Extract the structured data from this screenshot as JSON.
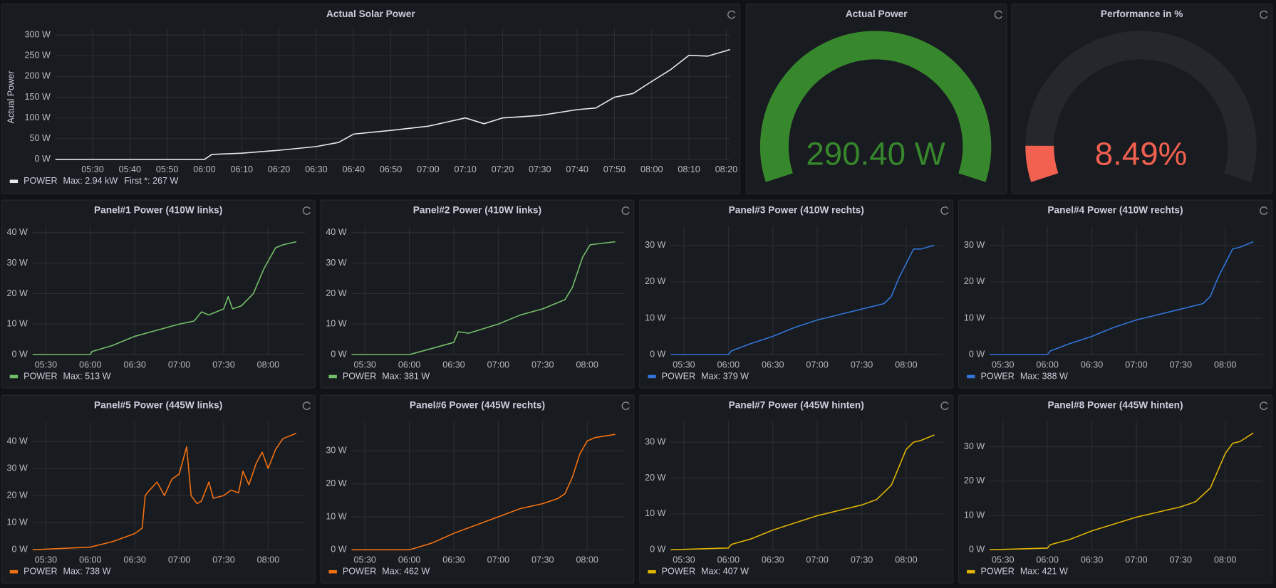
{
  "chart_data": [
    {
      "type": "line",
      "title": "Actual Solar Power",
      "ylabel": "Actual Power",
      "x": [
        "05:20",
        "06:00",
        "06:02",
        "06:10",
        "06:20",
        "06:30",
        "06:36",
        "06:40",
        "06:50",
        "07:00",
        "07:05",
        "07:10",
        "07:15",
        "07:20",
        "07:30",
        "07:40",
        "07:45",
        "07:50",
        "07:55",
        "08:00",
        "08:05",
        "08:10",
        "08:15",
        "08:20",
        "08:21"
      ],
      "series": [
        {
          "name": "POWER",
          "color": "#e8e8e8",
          "values": [
            0,
            0,
            12,
            15,
            22,
            31,
            41,
            61,
            70,
            80,
            90,
            100,
            86,
            100,
            106,
            120,
            124,
            150,
            159,
            188,
            216,
            251,
            249,
            262,
            265
          ]
        }
      ],
      "legend_stats": [
        "Max: 2.94 kW",
        "First *: 267 W"
      ],
      "xlim": [
        "05:20",
        "08:21"
      ],
      "xticks": [
        "05:30",
        "05:40",
        "05:50",
        "06:00",
        "06:10",
        "06:20",
        "06:30",
        "06:40",
        "06:50",
        "07:00",
        "07:10",
        "07:20",
        "07:30",
        "07:40",
        "07:50",
        "08:00",
        "08:10",
        "08:20"
      ],
      "ylim": [
        0,
        300
      ],
      "yticks": [
        {
          "value": 0,
          "label": "0 W"
        },
        {
          "value": 50,
          "label": "50 W"
        },
        {
          "value": 100,
          "label": "100 W"
        },
        {
          "value": 150,
          "label": "150 W"
        },
        {
          "value": 200,
          "label": "200 W"
        },
        {
          "value": 250,
          "label": "250 W"
        },
        {
          "value": 300,
          "label": "300 W"
        }
      ]
    },
    {
      "type": "gauge",
      "title": "Actual Power",
      "value": 290.4,
      "value_label": "290.40 W",
      "lim": [
        0,
        290.4
      ],
      "color": "#37872d"
    },
    {
      "type": "gauge",
      "title": "Performance in %",
      "value": 8.49,
      "value_label": "8.49%",
      "lim": [
        0,
        100
      ],
      "color": "#f2604f"
    },
    {
      "type": "line",
      "title": "Panel#1 Power (410W links)",
      "x": [
        "05:21",
        "06:00",
        "06:01",
        "06:15",
        "06:30",
        "06:45",
        "07:00",
        "07:10",
        "07:15",
        "07:20",
        "07:25",
        "07:30",
        "07:33",
        "07:36",
        "07:42",
        "07:50",
        "07:57",
        "08:05",
        "08:10",
        "08:19"
      ],
      "series": [
        {
          "name": "POWER",
          "color": "#73bf69",
          "values": [
            0,
            0,
            1,
            3,
            6,
            8,
            10,
            11,
            14,
            13,
            14,
            15,
            19,
            15,
            16,
            20,
            28,
            35,
            36,
            37
          ]
        }
      ],
      "legend_stats": [
        "Max: 513 W"
      ],
      "xlim": [
        "05:21",
        "08:25"
      ],
      "xticks": [
        "05:30",
        "06:00",
        "06:30",
        "07:00",
        "07:30",
        "08:00"
      ],
      "ylim": [
        0,
        40
      ],
      "yticks": [
        {
          "value": 0,
          "label": "0 W"
        },
        {
          "value": 10,
          "label": "10 W"
        },
        {
          "value": 20,
          "label": "20 W"
        },
        {
          "value": 30,
          "label": "30 W"
        },
        {
          "value": 40,
          "label": "40 W"
        }
      ]
    },
    {
      "type": "line",
      "title": "Panel#2 Power (410W links)",
      "x": [
        "05:21",
        "06:00",
        "06:15",
        "06:30",
        "06:33",
        "06:40",
        "07:00",
        "07:15",
        "07:30",
        "07:40",
        "07:45",
        "07:50",
        "07:57",
        "08:02",
        "08:10",
        "08:19"
      ],
      "series": [
        {
          "name": "POWER",
          "color": "#73bf69",
          "values": [
            0,
            0,
            2,
            4,
            7.5,
            7,
            10,
            13,
            15,
            17,
            18,
            22,
            32,
            36,
            36.5,
            37
          ]
        }
      ],
      "legend_stats": [
        "Max: 381 W"
      ],
      "xlim": [
        "05:21",
        "08:25"
      ],
      "xticks": [
        "05:30",
        "06:00",
        "06:30",
        "07:00",
        "07:30",
        "08:00"
      ],
      "ylim": [
        0,
        40
      ],
      "yticks": [
        {
          "value": 0,
          "label": "0 W"
        },
        {
          "value": 10,
          "label": "10 W"
        },
        {
          "value": 20,
          "label": "20 W"
        },
        {
          "value": 30,
          "label": "30 W"
        },
        {
          "value": 40,
          "label": "40 W"
        }
      ]
    },
    {
      "type": "line",
      "title": "Panel#3 Power (410W rechts)",
      "x": [
        "05:21",
        "06:00",
        "06:02",
        "06:15",
        "06:30",
        "06:45",
        "07:00",
        "07:15",
        "07:30",
        "07:45",
        "07:50",
        "07:55",
        "08:00",
        "08:05",
        "08:10",
        "08:19"
      ],
      "series": [
        {
          "name": "POWER",
          "color": "#3274d9",
          "values": [
            0,
            0,
            1,
            3,
            5,
            7.5,
            9.5,
            11,
            12.5,
            14,
            16,
            21,
            25,
            29,
            29,
            30
          ]
        }
      ],
      "legend_stats": [
        "Max: 379 W"
      ],
      "xlim": [
        "05:21",
        "08:25"
      ],
      "xticks": [
        "05:30",
        "06:00",
        "06:30",
        "07:00",
        "07:30",
        "08:00"
      ],
      "ylim": [
        0,
        33.5
      ],
      "yticks": [
        {
          "value": 0,
          "label": "0 W"
        },
        {
          "value": 10,
          "label": "10 W"
        },
        {
          "value": 20,
          "label": "20 W"
        },
        {
          "value": 30,
          "label": "30 W"
        }
      ]
    },
    {
      "type": "line",
      "title": "Panel#4 Power (410W rechts)",
      "x": [
        "05:21",
        "06:00",
        "06:02",
        "06:15",
        "06:30",
        "06:45",
        "07:00",
        "07:15",
        "07:30",
        "07:45",
        "07:50",
        "07:55",
        "08:00",
        "08:05",
        "08:10",
        "08:19"
      ],
      "series": [
        {
          "name": "POWER",
          "color": "#3274d9",
          "values": [
            0,
            0,
            1,
            3,
            5,
            7.5,
            9.5,
            11,
            12.5,
            14,
            16,
            21,
            25,
            29,
            29.5,
            31
          ]
        }
      ],
      "legend_stats": [
        "Max: 388 W"
      ],
      "xlim": [
        "05:21",
        "08:25"
      ],
      "xticks": [
        "05:30",
        "06:00",
        "06:30",
        "07:00",
        "07:30",
        "08:00"
      ],
      "ylim": [
        0,
        33.5
      ],
      "yticks": [
        {
          "value": 0,
          "label": "0 W"
        },
        {
          "value": 10,
          "label": "10 W"
        },
        {
          "value": 20,
          "label": "20 W"
        },
        {
          "value": 30,
          "label": "30 W"
        }
      ]
    },
    {
      "type": "line",
      "title": "Panel#5 Power (445W links)",
      "x": [
        "05:21",
        "06:00",
        "06:15",
        "06:30",
        "06:35",
        "06:37",
        "06:40",
        "06:45",
        "06:50",
        "06:55",
        "07:00",
        "07:05",
        "07:08",
        "07:12",
        "07:15",
        "07:20",
        "07:23",
        "07:30",
        "07:35",
        "07:40",
        "07:43",
        "07:47",
        "07:52",
        "07:56",
        "08:00",
        "08:05",
        "08:10",
        "08:19"
      ],
      "series": [
        {
          "name": "POWER",
          "color": "#f2700f",
          "values": [
            0,
            1,
            3,
            6,
            8,
            20,
            22,
            25,
            20,
            26,
            28,
            38,
            20,
            17,
            18,
            25,
            19,
            20,
            22,
            21,
            29,
            24,
            32,
            36,
            30,
            37,
            41,
            43
          ]
        }
      ],
      "legend_stats": [
        "Max: 738 W"
      ],
      "xlim": [
        "05:21",
        "08:25"
      ],
      "xticks": [
        "05:30",
        "06:00",
        "06:30",
        "07:00",
        "07:30",
        "08:00"
      ],
      "ylim": [
        0,
        45
      ],
      "yticks": [
        {
          "value": 0,
          "label": "0 W"
        },
        {
          "value": 10,
          "label": "10 W"
        },
        {
          "value": 20,
          "label": "20 W"
        },
        {
          "value": 30,
          "label": "30 W"
        },
        {
          "value": 40,
          "label": "40 W"
        }
      ]
    },
    {
      "type": "line",
      "title": "Panel#6 Power (445W rechts)",
      "x": [
        "05:21",
        "06:00",
        "06:15",
        "06:30",
        "06:45",
        "07:00",
        "07:15",
        "07:30",
        "07:40",
        "07:45",
        "07:50",
        "07:55",
        "08:00",
        "08:05",
        "08:19"
      ],
      "series": [
        {
          "name": "POWER",
          "color": "#f2700f",
          "values": [
            0,
            0,
            2,
            5,
            7.5,
            10,
            12.5,
            14,
            15.5,
            17,
            22,
            29,
            33,
            34,
            35
          ]
        }
      ],
      "legend_stats": [
        "Max: 462 W"
      ],
      "xlim": [
        "05:21",
        "08:25"
      ],
      "xticks": [
        "05:30",
        "06:00",
        "06:30",
        "07:00",
        "07:30",
        "08:00"
      ],
      "ylim": [
        0,
        37
      ],
      "yticks": [
        {
          "value": 0,
          "label": "0 W"
        },
        {
          "value": 10,
          "label": "10 W"
        },
        {
          "value": 20,
          "label": "20 W"
        },
        {
          "value": 30,
          "label": "30 W"
        }
      ]
    },
    {
      "type": "line",
      "title": "Panel#7 Power (445W hinten)",
      "x": [
        "05:21",
        "06:00",
        "06:02",
        "06:15",
        "06:30",
        "06:45",
        "07:00",
        "07:15",
        "07:30",
        "07:40",
        "07:50",
        "07:55",
        "08:00",
        "08:05",
        "08:10",
        "08:19"
      ],
      "series": [
        {
          "name": "POWER",
          "color": "#e0b400",
          "values": [
            0,
            0.5,
            1.5,
            3,
            5.5,
            7.5,
            9.5,
            11,
            12.5,
            14,
            18,
            23,
            28,
            30,
            30.5,
            32
          ]
        }
      ],
      "legend_stats": [
        "Max: 407 W"
      ],
      "xlim": [
        "05:21",
        "08:25"
      ],
      "xticks": [
        "05:30",
        "06:00",
        "06:30",
        "07:00",
        "07:30",
        "08:00"
      ],
      "ylim": [
        0,
        34
      ],
      "yticks": [
        {
          "value": 0,
          "label": "0 W"
        },
        {
          "value": 10,
          "label": "10 W"
        },
        {
          "value": 20,
          "label": "20 W"
        },
        {
          "value": 30,
          "label": "30 W"
        }
      ]
    },
    {
      "type": "line",
      "title": "Panel#8 Power (445W hinten)",
      "x": [
        "05:21",
        "06:00",
        "06:02",
        "06:15",
        "06:30",
        "06:45",
        "07:00",
        "07:15",
        "07:30",
        "07:40",
        "07:50",
        "07:55",
        "08:00",
        "08:05",
        "08:10",
        "08:19"
      ],
      "series": [
        {
          "name": "POWER",
          "color": "#e0b400",
          "values": [
            0,
            0.5,
            1.5,
            3,
            5.5,
            7.5,
            9.5,
            11,
            12.5,
            14,
            18,
            23,
            28,
            31,
            31.5,
            34
          ]
        }
      ],
      "legend_stats": [
        "Max: 421 W"
      ],
      "xlim": [
        "05:21",
        "08:25"
      ],
      "xticks": [
        "05:30",
        "06:00",
        "06:30",
        "07:00",
        "07:30",
        "08:00"
      ],
      "ylim": [
        0,
        35.5
      ],
      "yticks": [
        {
          "value": 0,
          "label": "0 W"
        },
        {
          "value": 10,
          "label": "10 W"
        },
        {
          "value": 20,
          "label": "20 W"
        },
        {
          "value": 30,
          "label": "30 W"
        }
      ]
    }
  ]
}
